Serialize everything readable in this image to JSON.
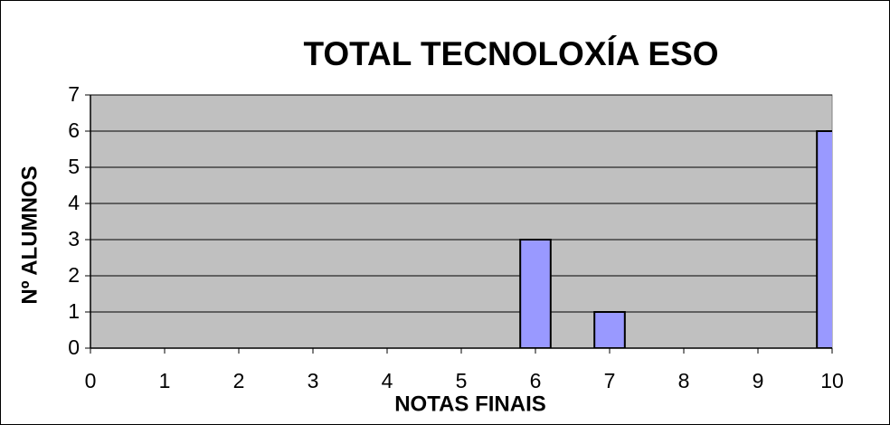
{
  "chart_data": {
    "type": "bar",
    "title": "TOTAL TECNOLOXÍA ESO",
    "x_label": "NOTAS FINAIS",
    "y_label": "Nº ALUMNOS",
    "x": [
      0,
      1,
      2,
      3,
      4,
      5,
      6,
      7,
      8,
      9,
      10
    ],
    "values": [
      0,
      0,
      0,
      0,
      0,
      0,
      3,
      1,
      0,
      0,
      6
    ],
    "color": "#9999ff",
    "plot_background": "#c0c0c0",
    "xlim": [
      0,
      10
    ],
    "xticks": [
      0,
      1,
      2,
      3,
      4,
      5,
      6,
      7,
      8,
      9,
      10
    ],
    "ylim": [
      0,
      7
    ],
    "yticks": [
      0,
      1,
      2,
      3,
      4,
      5,
      6,
      7
    ],
    "grid": true
  }
}
